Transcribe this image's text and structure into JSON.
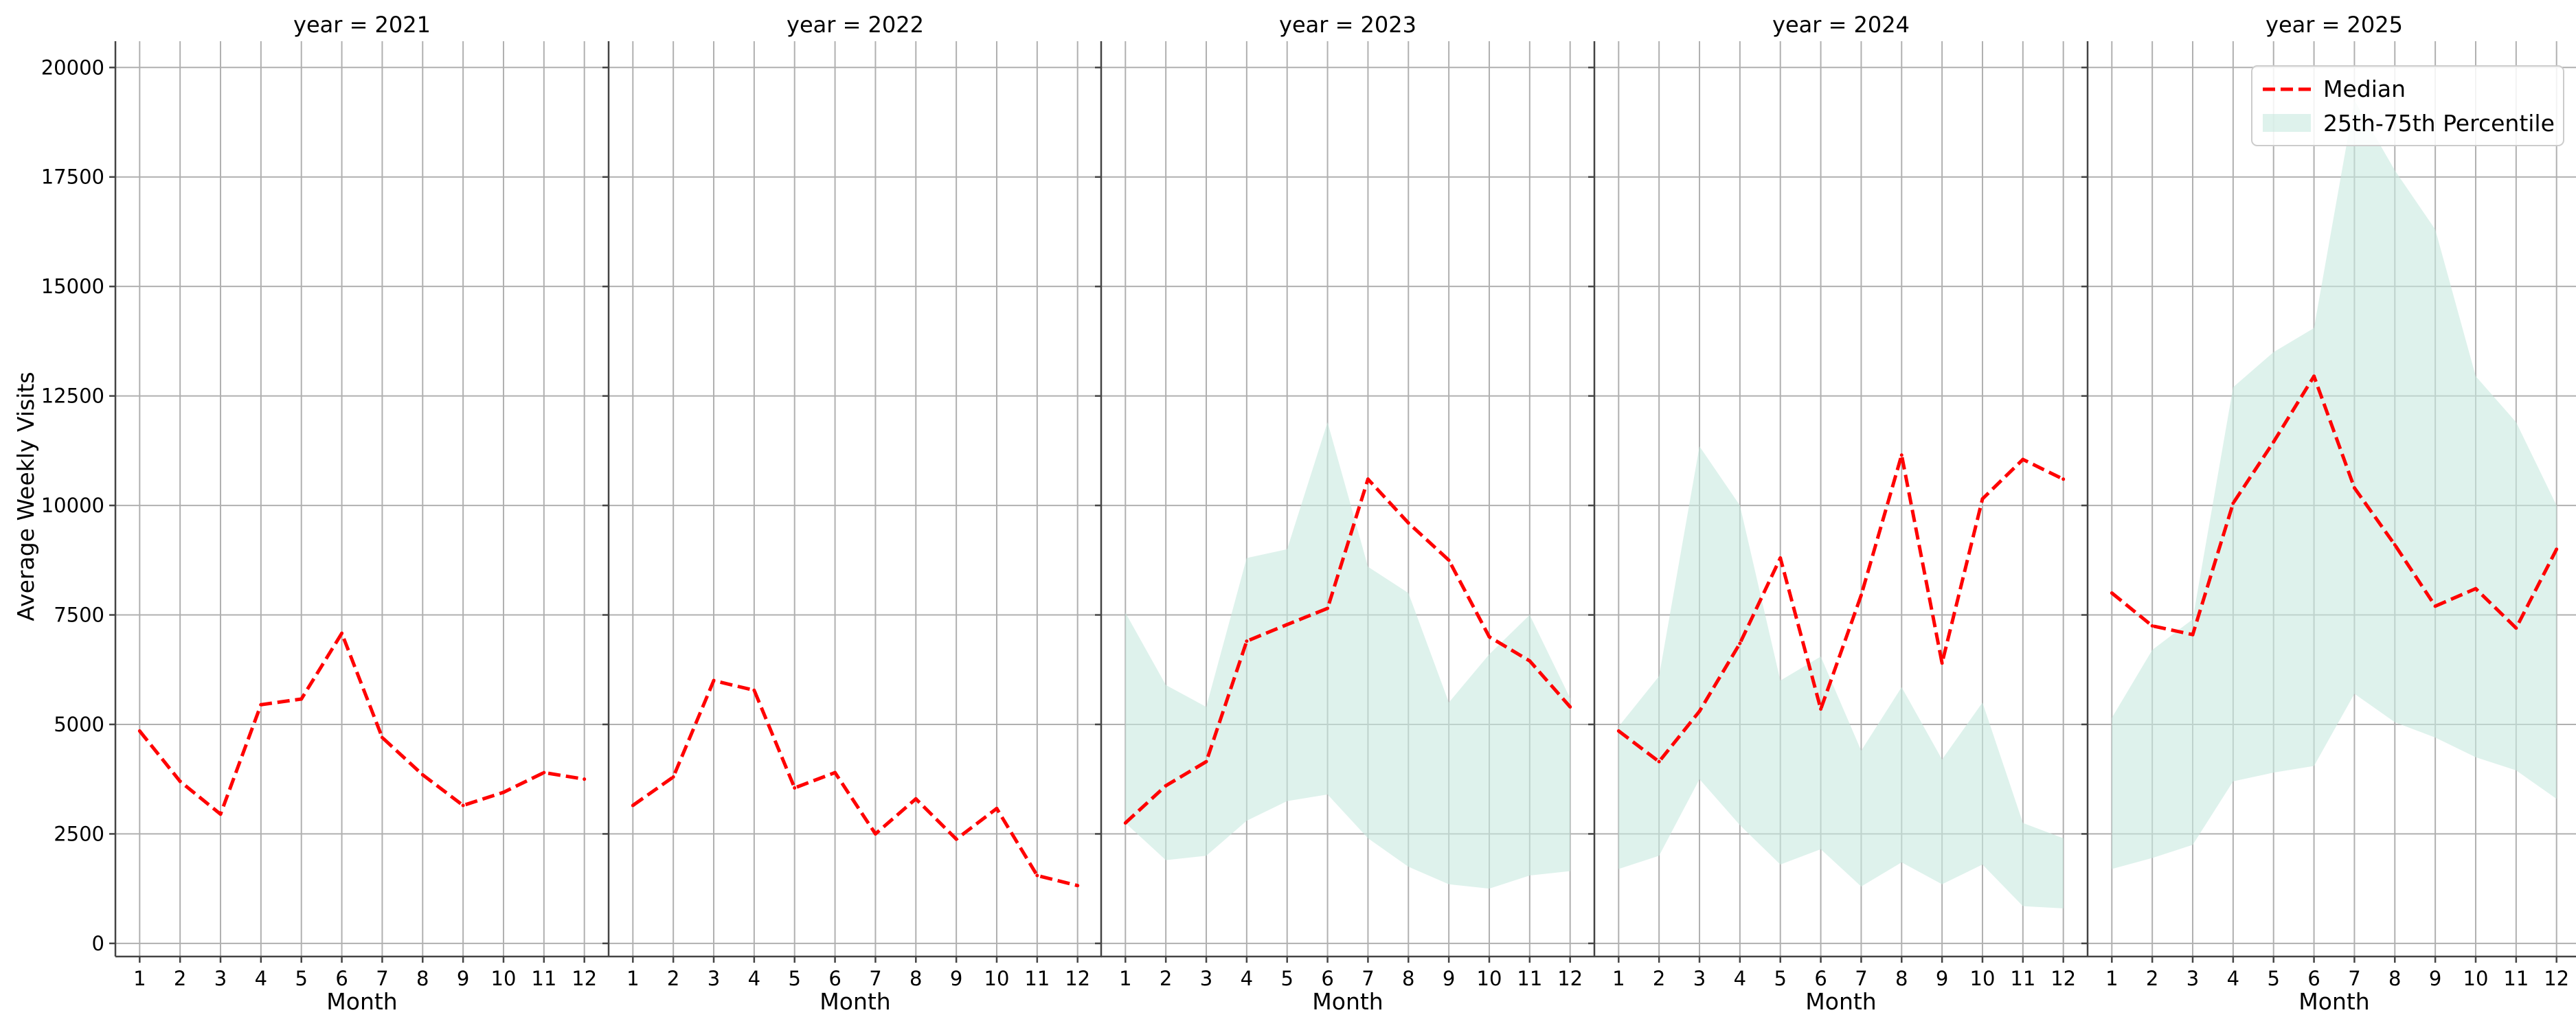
{
  "chart_data": {
    "type": "line",
    "x_label": "Month",
    "y_label": "Average Weekly Visits",
    "x_ticks": [
      1,
      2,
      3,
      4,
      5,
      6,
      7,
      8,
      9,
      10,
      11,
      12
    ],
    "y_ticks": [
      0,
      2500,
      5000,
      7500,
      10000,
      12500,
      15000,
      17500,
      20000
    ],
    "ylim": [
      -300,
      20600
    ],
    "xlim": [
      0.4,
      12.6
    ],
    "grid": true,
    "legend": {
      "placement": "top-right (year = 2025 panel)",
      "entries": [
        {
          "label": "Median",
          "style": "dashed-line",
          "color": "#ff0000"
        },
        {
          "label": "25th-75th Percentile",
          "style": "band",
          "color": "#c8eae0"
        }
      ]
    },
    "colors": {
      "median": "#ff0000",
      "band": "#c8eae0",
      "grid": "#b0b0b0"
    },
    "panels": [
      {
        "title": "year = 2021",
        "median": [
          4850,
          3700,
          2950,
          5450,
          5580,
          7080,
          4700,
          3850,
          3150,
          3450,
          3900,
          3750
        ],
        "band": null
      },
      {
        "title": "year = 2022",
        "median": [
          3150,
          3800,
          6000,
          5780,
          3550,
          3900,
          2500,
          3300,
          2380,
          3080,
          1550,
          1320
        ],
        "band": null
      },
      {
        "title": "year = 2023",
        "median": [
          2750,
          3600,
          4150,
          6900,
          7280,
          7650,
          10600,
          9600,
          8750,
          7000,
          6450,
          5400
        ],
        "band": {
          "lower": [
            2750,
            1900,
            2000,
            2800,
            3250,
            3400,
            2400,
            1750,
            1350,
            1250,
            1550,
            1650
          ],
          "upper": [
            7550,
            5900,
            5400,
            8800,
            9000,
            11900,
            8600,
            8000,
            5500,
            6600,
            7500,
            5600
          ]
        }
      },
      {
        "title": "year = 2024",
        "median": [
          4850,
          4150,
          5300,
          6850,
          8800,
          5350,
          7950,
          11150,
          6400,
          10150,
          11050,
          10600
        ],
        "band": {
          "lower": [
            1700,
            2000,
            3750,
            2700,
            1800,
            2150,
            1300,
            1850,
            1350,
            1800,
            850,
            800
          ],
          "upper": [
            4950,
            6100,
            11350,
            10000,
            6000,
            6550,
            4400,
            5850,
            4200,
            5500,
            2750,
            2400
          ]
        }
      },
      {
        "title": "year = 2025",
        "median": [
          8000,
          7250,
          7050,
          10050,
          11450,
          12950,
          10400,
          9100,
          7700,
          8100,
          7200,
          9000
        ],
        "band": {
          "lower": [
            1700,
            1950,
            2250,
            3700,
            3900,
            4050,
            5700,
            5050,
            4700,
            4250,
            3950,
            3300
          ],
          "upper": [
            5150,
            6700,
            7400,
            12700,
            13500,
            14050,
            19250,
            17650,
            16300,
            12950,
            11900,
            10000
          ]
        }
      }
    ]
  }
}
